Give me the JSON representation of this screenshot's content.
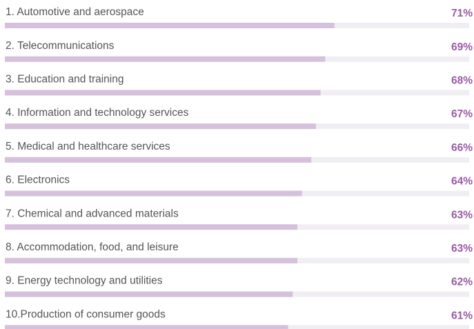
{
  "chart_data": {
    "type": "hbar",
    "categories": [
      "1.  Automotive and aerospace",
      "2.  Telecommunications",
      "3.  Education and training",
      "4.  Information and technology services",
      "5.  Medical and healthcare services",
      "6.  Electronics",
      "7.  Chemical and advanced materials",
      "8.  Accommodation, food, and leisure",
      "9.  Energy technology and utilities",
      "10.Production of consumer goods"
    ],
    "values": [
      71,
      69,
      68,
      67,
      66,
      64,
      63,
      63,
      62,
      61
    ],
    "value_labels": [
      "71%",
      "69%",
      "68%",
      "67%",
      "66%",
      "64%",
      "63%",
      "63%",
      "62%",
      "61%"
    ],
    "xlim": [
      0,
      100
    ],
    "color": "#d5c1dc",
    "track_color": "#f1eef3",
    "label_color": "#9a5aa6"
  }
}
